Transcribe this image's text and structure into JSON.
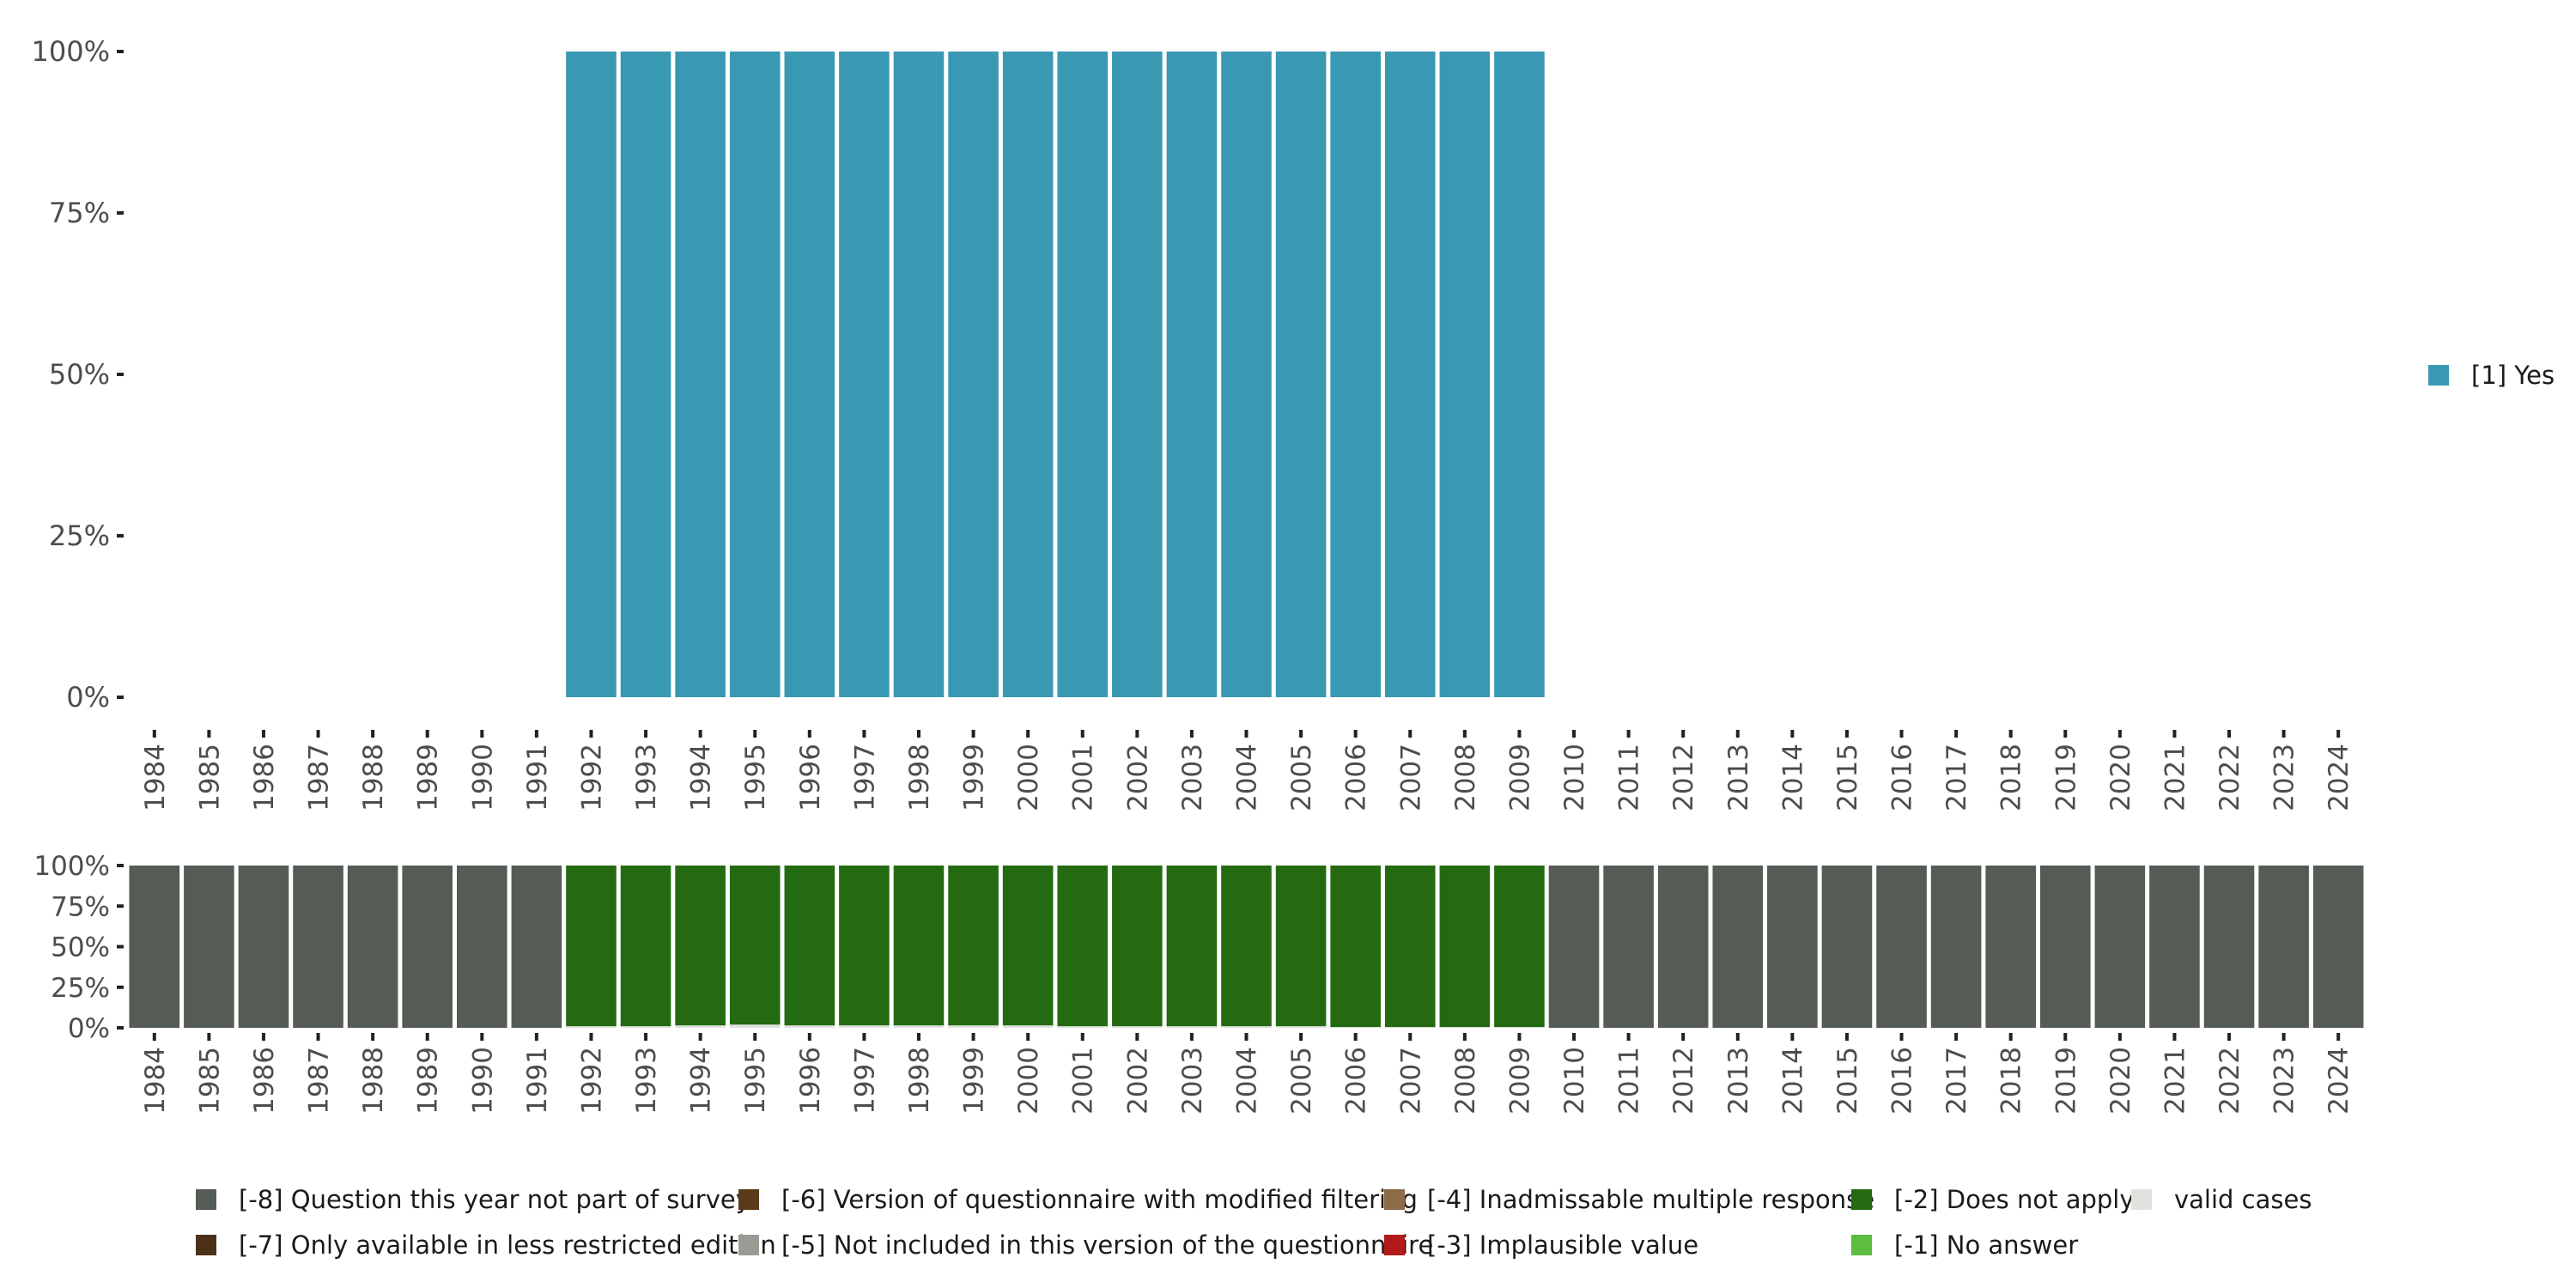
{
  "chart_data": [
    {
      "type": "bar",
      "stacked": true,
      "title": "",
      "xlabel": "",
      "ylabel": "",
      "ylim": [
        0,
        100
      ],
      "yticks": [
        "0%",
        "25%",
        "50%",
        "75%",
        "100%"
      ],
      "categories": [
        "1984",
        "1985",
        "1986",
        "1987",
        "1988",
        "1989",
        "1990",
        "1991",
        "1992",
        "1993",
        "1994",
        "1995",
        "1996",
        "1997",
        "1998",
        "1999",
        "2000",
        "2001",
        "2002",
        "2003",
        "2004",
        "2005",
        "2006",
        "2007",
        "2008",
        "2009",
        "2010",
        "2011",
        "2012",
        "2013",
        "2014",
        "2015",
        "2016",
        "2017",
        "2018",
        "2019",
        "2020",
        "2021",
        "2022",
        "2023",
        "2024"
      ],
      "series": [
        {
          "name": "[1] Yes",
          "color": "#3a99b2",
          "values": [
            0,
            0,
            0,
            0,
            0,
            0,
            0,
            0,
            100,
            100,
            100,
            100,
            100,
            100,
            100,
            100,
            100,
            100,
            100,
            100,
            100,
            100,
            100,
            100,
            100,
            100,
            0,
            0,
            0,
            0,
            0,
            0,
            0,
            0,
            0,
            0,
            0,
            0,
            0,
            0,
            0
          ]
        }
      ],
      "legend": "right"
    },
    {
      "type": "bar",
      "stacked": true,
      "title": "",
      "xlabel": "",
      "ylabel": "",
      "ylim": [
        0,
        100
      ],
      "yticks": [
        "0%",
        "25%",
        "50%",
        "75%",
        "100%"
      ],
      "categories": [
        "1984",
        "1985",
        "1986",
        "1987",
        "1988",
        "1989",
        "1990",
        "1991",
        "1992",
        "1993",
        "1994",
        "1995",
        "1996",
        "1997",
        "1998",
        "1999",
        "2000",
        "2001",
        "2002",
        "2003",
        "2004",
        "2005",
        "2006",
        "2007",
        "2008",
        "2009",
        "2010",
        "2011",
        "2012",
        "2013",
        "2014",
        "2015",
        "2016",
        "2017",
        "2018",
        "2019",
        "2020",
        "2021",
        "2022",
        "2023",
        "2024"
      ],
      "series": [
        {
          "name": "valid cases",
          "color": "#e0e2de",
          "values": [
            0,
            0,
            0,
            0,
            0,
            0,
            0,
            0,
            1,
            1,
            1.5,
            2,
            1.5,
            1.5,
            1.5,
            1.5,
            1.5,
            1,
            1,
            1,
            1,
            1,
            0.5,
            0.5,
            0.5,
            0.5,
            0,
            0,
            0,
            0,
            0,
            0,
            0,
            0,
            0,
            0,
            0,
            0,
            0,
            0,
            0
          ]
        },
        {
          "name": "[-2] Does not apply",
          "color": "#236a10",
          "values": [
            0,
            0,
            0,
            0,
            0,
            0,
            0,
            0,
            99,
            99,
            98.5,
            98,
            98.5,
            98.5,
            98.5,
            98.5,
            98.5,
            99,
            99,
            99,
            99,
            99,
            99.5,
            99.5,
            99.5,
            99.5,
            0,
            0,
            0,
            0,
            0,
            0,
            0,
            0,
            0,
            0,
            0,
            0,
            0,
            0,
            0
          ]
        },
        {
          "name": "[-8] Question this year not part of survey",
          "color": "#555b55",
          "values": [
            100,
            100,
            100,
            100,
            100,
            100,
            100,
            100,
            0,
            0,
            0,
            0,
            0,
            0,
            0,
            0,
            0,
            0,
            0,
            0,
            0,
            0,
            0,
            0,
            0,
            0,
            100,
            100,
            100,
            100,
            100,
            100,
            100,
            100,
            100,
            100,
            100,
            100,
            100,
            100,
            100
          ]
        }
      ],
      "legend": "bottom"
    }
  ],
  "legend_top": [
    {
      "label": "[1] Yes",
      "color": "#3a99b2"
    }
  ],
  "legend_bottom": [
    {
      "label": "[-8] Question this year not part of survey",
      "color": "#555b55"
    },
    {
      "label": "[-7] Only available in less restricted edition",
      "color": "#4b3118"
    },
    {
      "label": "[-6] Version of questionnaire with modified filtering",
      "color": "#5b3a1a"
    },
    {
      "label": "[-5] Not included in this version of the questionnaire",
      "color": "#9a9a94"
    },
    {
      "label": "[-4] Inadmissable multiple response",
      "color": "#8d6a48"
    },
    {
      "label": "[-3] Implausible value",
      "color": "#b01a1a"
    },
    {
      "label": "[-2] Does not apply",
      "color": "#236a10"
    },
    {
      "label": "[-1] No answer",
      "color": "#5cbd3e"
    },
    {
      "label": "valid cases",
      "color": "#e0e2de"
    }
  ]
}
